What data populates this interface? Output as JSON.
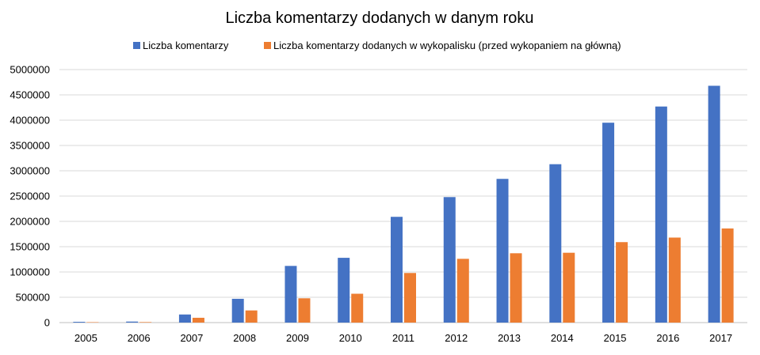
{
  "chart_data": {
    "type": "bar",
    "title": "Liczba komentarzy dodanych w danym roku",
    "xlabel": "",
    "ylabel": "",
    "ylim": [
      0,
      5000000
    ],
    "yticks": [
      0,
      500000,
      1000000,
      1500000,
      2000000,
      2500000,
      3000000,
      3500000,
      4000000,
      4500000,
      5000000
    ],
    "ytick_labels": [
      "0",
      "500000",
      "1000000",
      "1500000",
      "2000000",
      "2500000",
      "3000000",
      "3500000",
      "4000000",
      "4500000",
      "5000000"
    ],
    "grid": true,
    "legend_position": "top",
    "categories": [
      "2005",
      "2006",
      "2007",
      "2008",
      "2009",
      "2010",
      "2011",
      "2012",
      "2013",
      "2014",
      "2015",
      "2016",
      "2017"
    ],
    "series": [
      {
        "name": "Liczba komentarzy",
        "color": "#4472C4",
        "values": [
          15000,
          20000,
          160000,
          470000,
          1120000,
          1280000,
          2090000,
          2480000,
          2840000,
          3130000,
          3950000,
          4270000,
          4680000
        ]
      },
      {
        "name": "Liczba komentarzy dodanych w wykopalisku (przed wykopaniem na główną)",
        "color": "#ED7D31",
        "values": [
          8000,
          10000,
          95000,
          240000,
          480000,
          570000,
          980000,
          1260000,
          1370000,
          1380000,
          1590000,
          1680000,
          1860000
        ]
      }
    ]
  }
}
